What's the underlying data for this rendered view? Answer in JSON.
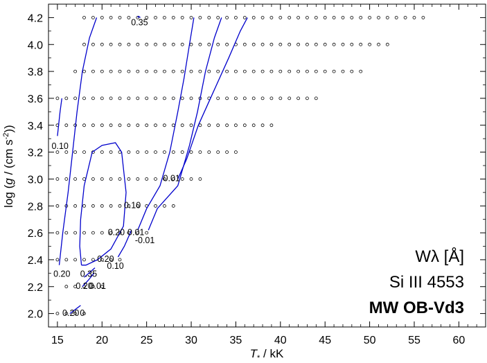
{
  "chart_data": {
    "type": "scatter",
    "title": "",
    "xlabel": "T* / kK",
    "ylabel": "log (g / (cm s^-2))",
    "xlim": [
      14,
      63
    ],
    "ylim": [
      1.9,
      4.3
    ],
    "xticks": [
      15,
      20,
      25,
      30,
      35,
      40,
      45,
      50,
      55,
      60
    ],
    "xtick_labels": [
      "15",
      "20",
      "25",
      "30",
      "35",
      "40",
      "45",
      "50",
      "55",
      "60"
    ],
    "yticks": [
      2.0,
      2.2,
      2.4,
      2.6,
      2.8,
      3.0,
      3.2,
      3.4,
      3.6,
      3.8,
      4.0,
      4.2
    ],
    "ytick_labels": [
      "2.0",
      "2.2",
      "2.4",
      "2.6",
      "2.8",
      "3.0",
      "3.2",
      "3.4",
      "3.6",
      "3.8",
      "4.0",
      "4.2"
    ],
    "grid": false,
    "grid_points": {
      "description_rows": [
        {
          "logg": 4.2,
          "teff_min": 18,
          "teff_max": 56
        },
        {
          "logg": 4.0,
          "teff_min": 18,
          "teff_max": 52
        },
        {
          "logg": 3.8,
          "teff_min": 17,
          "teff_max": 49
        },
        {
          "logg": 3.6,
          "teff_min": 15,
          "teff_max": 44
        },
        {
          "logg": 3.4,
          "teff_min": 15,
          "teff_max": 39
        },
        {
          "logg": 3.2,
          "teff_min": 15,
          "teff_max": 35
        },
        {
          "logg": 3.0,
          "teff_min": 15,
          "teff_max": 31
        },
        {
          "logg": 2.8,
          "teff_min": 15,
          "teff_max": 28
        },
        {
          "logg": 2.6,
          "teff_min": 15,
          "teff_max": 25
        },
        {
          "logg": 2.4,
          "teff_min": 15,
          "teff_max": 22
        },
        {
          "logg": 2.2,
          "teff_min": 16,
          "teff_max": 20
        },
        {
          "logg": 2.0,
          "teff_min": 15,
          "teff_max": 18
        }
      ],
      "step_kK": 1
    },
    "contours": [
      {
        "level": "0.10",
        "points": [
          [
            15.0,
            3.32
          ],
          [
            15.3,
            3.5
          ],
          [
            15.5,
            3.6
          ]
        ]
      },
      {
        "level": "0.20",
        "points": [
          [
            15.2,
            2.36
          ],
          [
            15.6,
            2.6
          ],
          [
            16.2,
            2.9
          ],
          [
            16.7,
            3.2
          ],
          [
            17.2,
            3.5
          ],
          [
            17.8,
            3.8
          ],
          [
            18.6,
            4.05
          ],
          [
            19.4,
            4.2
          ]
        ]
      },
      {
        "level": "0.35",
        "points": [
          [
            17.7,
            2.36
          ],
          [
            17.5,
            2.5
          ],
          [
            17.6,
            2.7
          ],
          [
            18.0,
            2.95
          ],
          [
            18.9,
            3.2
          ],
          [
            20.0,
            3.25
          ],
          [
            21.5,
            3.27
          ],
          [
            22.2,
            3.2
          ],
          [
            22.7,
            2.9
          ],
          [
            22.4,
            2.65
          ],
          [
            21.0,
            2.48
          ],
          [
            19.5,
            2.4
          ],
          [
            18.2,
            2.36
          ],
          [
            17.7,
            2.36
          ]
        ]
      },
      {
        "level": "0.35",
        "points": [
          [
            24.0,
            4.2
          ],
          [
            24.1,
            4.21
          ],
          [
            24.3,
            4.2
          ]
        ]
      },
      {
        "level": "0.20",
        "points": [
          [
            24.0,
            2.62
          ],
          [
            25.0,
            2.78
          ],
          [
            26.5,
            2.95
          ],
          [
            27.6,
            3.2
          ],
          [
            28.5,
            3.5
          ],
          [
            29.2,
            3.75
          ],
          [
            29.8,
            4.0
          ],
          [
            30.3,
            4.2
          ]
        ]
      },
      {
        "level": "0.10",
        "points": [
          [
            25.2,
            2.62
          ],
          [
            26.2,
            2.78
          ],
          [
            28.5,
            2.95
          ],
          [
            29.8,
            3.25
          ],
          [
            30.7,
            3.5
          ],
          [
            31.6,
            3.8
          ],
          [
            32.6,
            4.05
          ],
          [
            33.4,
            4.2
          ]
        ]
      },
      {
        "level": "0.01",
        "points": [
          [
            28.5,
            3.0
          ],
          [
            29.5,
            3.15
          ],
          [
            30.8,
            3.4
          ],
          [
            32.5,
            3.65
          ],
          [
            34.2,
            3.9
          ],
          [
            35.5,
            4.1
          ],
          [
            36.3,
            4.2
          ]
        ]
      },
      {
        "level": "0.10",
        "points": [
          [
            21.8,
            2.42
          ],
          [
            22.5,
            2.5
          ],
          [
            23.3,
            2.62
          ]
        ]
      },
      {
        "level": "0.20",
        "points": [
          [
            18.0,
            2.27
          ],
          [
            18.7,
            2.31
          ],
          [
            19.2,
            2.34
          ]
        ]
      },
      {
        "level": "0.20",
        "points": [
          [
            17.8,
            2.2
          ],
          [
            18.5,
            2.25
          ],
          [
            19.1,
            2.3
          ]
        ]
      },
      {
        "level": "0.20",
        "points": [
          [
            16.4,
            2.0
          ],
          [
            17.0,
            2.03
          ],
          [
            17.6,
            2.06
          ]
        ]
      }
    ],
    "contour_labels": [
      {
        "text": "0.35",
        "x": 24.2,
        "y": 4.16
      },
      {
        "text": "0.10",
        "x": 15.3,
        "y": 3.24
      },
      {
        "text": "0.01",
        "x": 27.8,
        "y": 3.0
      },
      {
        "text": "0.10",
        "x": 23.4,
        "y": 2.8
      },
      {
        "text": "0.20",
        "x": 21.6,
        "y": 2.6
      },
      {
        "text": "0.01",
        "x": 23.8,
        "y": 2.6
      },
      {
        "text": "-0.01",
        "x": 24.8,
        "y": 2.54
      },
      {
        "text": "0.20",
        "x": 20.4,
        "y": 2.4
      },
      {
        "text": "0.10",
        "x": 21.5,
        "y": 2.35
      },
      {
        "text": "0.20",
        "x": 15.5,
        "y": 2.29
      },
      {
        "text": "0.35",
        "x": 18.5,
        "y": 2.29
      },
      {
        "text": "0.20",
        "x": 18.0,
        "y": 2.2
      },
      {
        "text": "0.01",
        "x": 19.5,
        "y": 2.2
      },
      {
        "text": "0.20",
        "x": 16.5,
        "y": 2.0
      },
      {
        "text": "0",
        "x": 17.8,
        "y": 2.0
      }
    ],
    "colors": {
      "contour": "#0000cc",
      "points": "#000000"
    }
  },
  "info": {
    "line1": "Wλ [Å]",
    "line2": "Si III 4553",
    "line3": "MW OB-Vd3"
  }
}
